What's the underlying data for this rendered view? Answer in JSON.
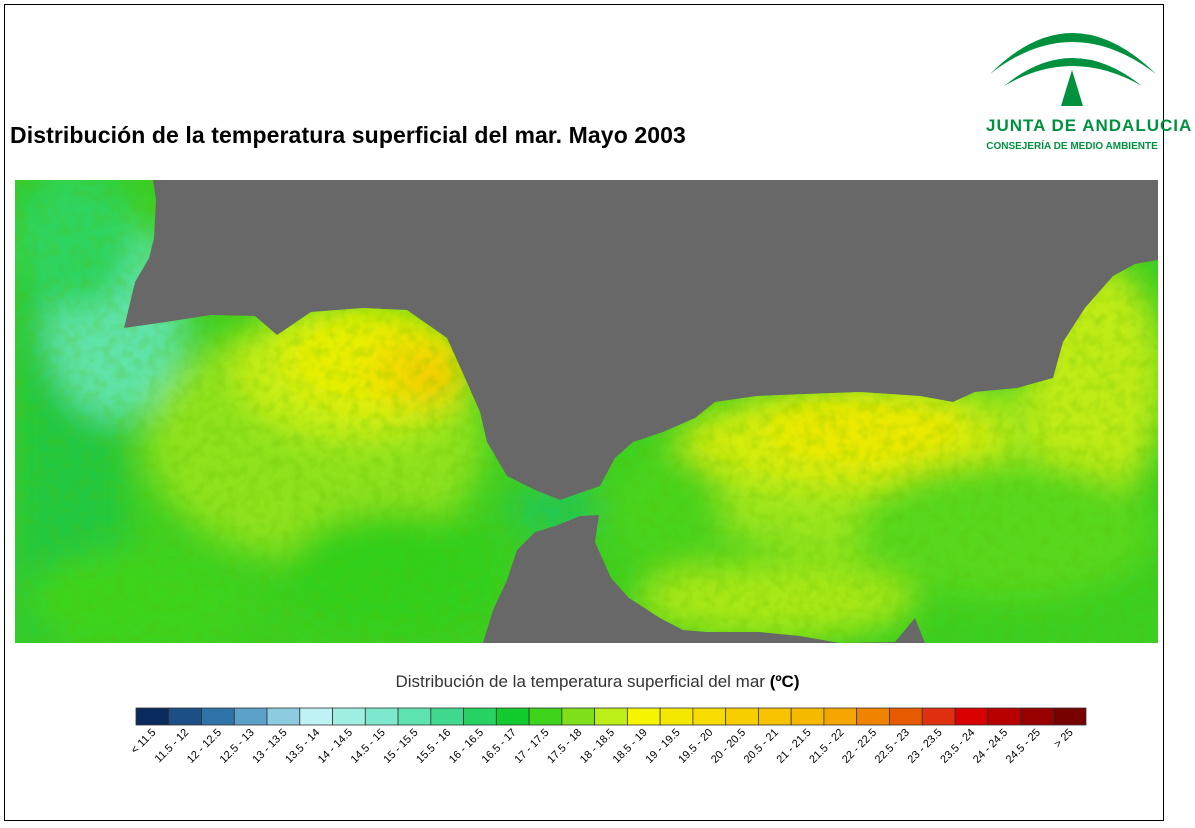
{
  "title": "Distribución de la temperatura superficial del mar. Mayo 2003",
  "logo": {
    "name": "JUNTA DE ANDALUCIA",
    "subtitle": "CONSEJERÍA DE MEDIO AMBIENTE",
    "color": "#00913f"
  },
  "map": {
    "land_color": "#686868",
    "content": "sea surface temperature raster"
  },
  "legend": {
    "title": "Distribución de la temperatura superficial del mar",
    "unit": "(ºC)",
    "classes": [
      {
        "label": "< 11.5",
        "color": "#0a2a5e"
      },
      {
        "label": "11.5 - 12",
        "color": "#1b4f86"
      },
      {
        "label": "12 - 12.5",
        "color": "#2e74a8"
      },
      {
        "label": "12.5 - 13",
        "color": "#5aa2c8"
      },
      {
        "label": "13 - 13.5",
        "color": "#8ccbe0"
      },
      {
        "label": "13.5 - 14",
        "color": "#bff2f5"
      },
      {
        "label": "14 - 14.5",
        "color": "#9ff0e2"
      },
      {
        "label": "14.5 - 15",
        "color": "#7de8cc"
      },
      {
        "label": "15 - 15.5",
        "color": "#5ee3b0"
      },
      {
        "label": "15.5 - 16",
        "color": "#3fda8e"
      },
      {
        "label": "16 - 16.5",
        "color": "#26d262"
      },
      {
        "label": "16.5 - 17",
        "color": "#12cc2e"
      },
      {
        "label": "17 - 17.5",
        "color": "#3ed41c"
      },
      {
        "label": "17.5 - 18",
        "color": "#7fe01a"
      },
      {
        "label": "18 - 18.5",
        "color": "#bcee18"
      },
      {
        "label": "18.5 - 19",
        "color": "#f5f500"
      },
      {
        "label": "19 - 19.5",
        "color": "#f4e800"
      },
      {
        "label": "19.5 - 20",
        "color": "#f6dc00"
      },
      {
        "label": "20 - 20.5",
        "color": "#f7cf00"
      },
      {
        "label": "20.5 - 21",
        "color": "#f7c300"
      },
      {
        "label": "21 - 21.5",
        "color": "#f7b800"
      },
      {
        "label": "21.5 - 22",
        "color": "#f5a500"
      },
      {
        "label": "22 - 22.5",
        "color": "#f08300"
      },
      {
        "label": "22.5 - 23",
        "color": "#e85a00"
      },
      {
        "label": "23 - 23.5",
        "color": "#e03010"
      },
      {
        "label": "23.5 - 24",
        "color": "#d80000"
      },
      {
        "label": "24 - 24.5",
        "color": "#b80000"
      },
      {
        "label": "24.5 - 25",
        "color": "#980000"
      },
      {
        "label": "> 25",
        "color": "#780000"
      }
    ]
  }
}
